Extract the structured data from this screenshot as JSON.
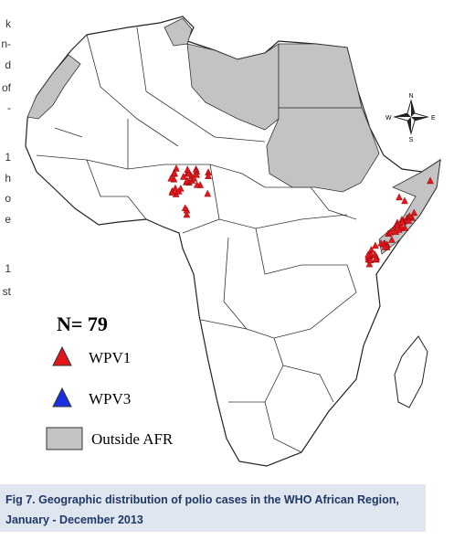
{
  "margin_text": [
    "k",
    "n-",
    "d",
    "of",
    "-",
    "1",
    "h",
    "o",
    "e",
    "1",
    "st"
  ],
  "legend": {
    "count_label": "N= 79",
    "items": [
      {
        "label": "WPV1",
        "color": "#e3161b"
      },
      {
        "label": "WPV3",
        "color": "#1b2ee0"
      },
      {
        "label": "Outside AFR",
        "color": "#c3c3c3"
      }
    ]
  },
  "compass": {
    "north": "N",
    "east": "E",
    "south": "S",
    "west": "W"
  },
  "caption": {
    "line1": "Fig 7. Geographic distribution of polio cases in the WHO African Region,",
    "line2": "January - December  2013"
  }
}
